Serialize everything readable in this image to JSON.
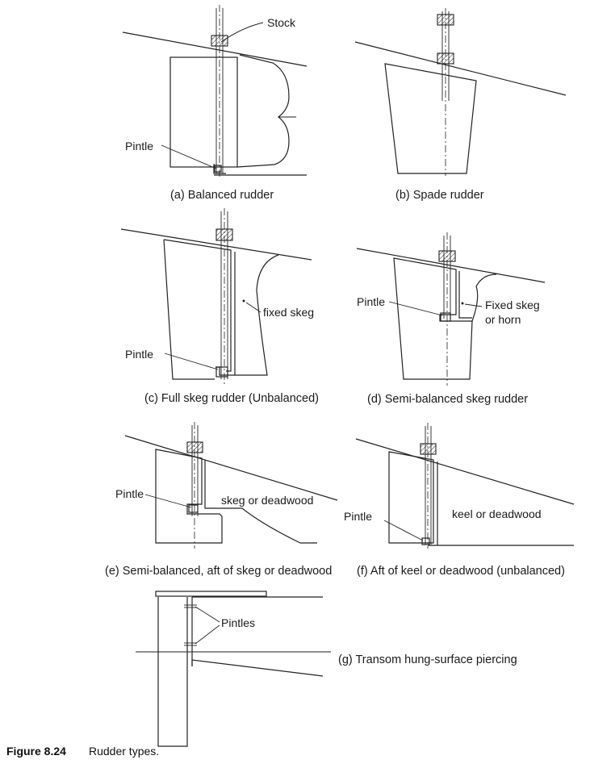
{
  "panels": [
    {
      "id": "a",
      "caption": "(a) Balanced rudder",
      "labels": [
        "Stock",
        "Pintle"
      ]
    },
    {
      "id": "b",
      "caption": "(b) Spade rudder",
      "labels": []
    },
    {
      "id": "c",
      "caption": "(c) Full skeg rudder (Unbalanced)",
      "labels": [
        "fixed skeg",
        "Pintle"
      ]
    },
    {
      "id": "d",
      "caption": "(d) Semi-balanced skeg rudder",
      "labels": [
        "Pintle",
        "Fixed skeg",
        "or horn"
      ]
    },
    {
      "id": "e",
      "caption": "(e) Semi-balanced, aft of skeg or deadwood",
      "labels": [
        "Pintle",
        "skeg or deadwood"
      ]
    },
    {
      "id": "f",
      "caption": "(f) Aft of keel or deadwood (unbalanced)",
      "labels": [
        "Pintle",
        "keel or deadwood"
      ]
    },
    {
      "id": "g",
      "caption": "(g) Transom hung-surface piercing",
      "labels": [
        "Pintles"
      ]
    }
  ],
  "figure": {
    "number": "Figure 8.24",
    "title": "Rudder types."
  }
}
